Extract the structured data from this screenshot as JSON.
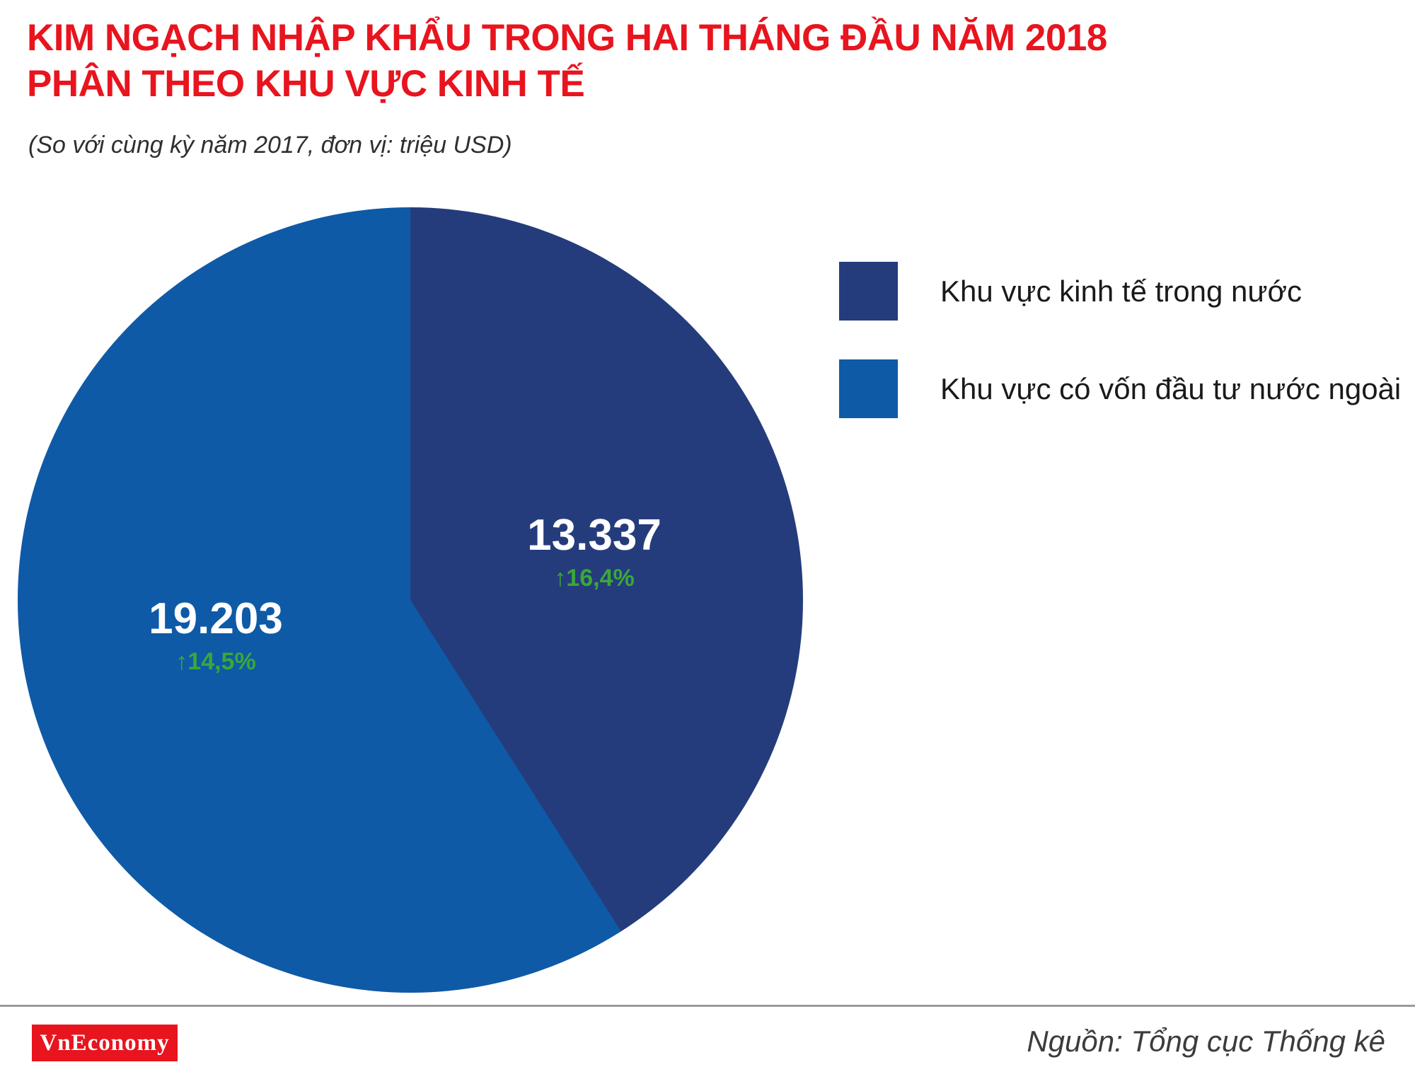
{
  "header": {
    "title_line1": "KIM NGẠCH NHẬP KHẨU TRONG HAI THÁNG ĐẦU NĂM 2018",
    "title_line2": "PHÂN THEO KHU VỰC KINH TẾ",
    "subtitle": "(So với cùng kỳ năm 2017, đơn vị: triệu USD)"
  },
  "chart_data": {
    "type": "pie",
    "title": "Kim ngạch nhập khẩu trong hai tháng đầu năm 2018 phân theo khu vực kinh tế",
    "subtitle": "(So với cùng kỳ năm 2017, đơn vị: triệu USD)",
    "unit": "triệu USD",
    "start_angle_deg": 0,
    "direction": "clockwise",
    "legend_position": "right",
    "series": [
      {
        "label": "Khu vực kinh tế trong nước",
        "value": 13337,
        "value_label": "13.337",
        "change": "↑16,4%",
        "color": "#253c7c"
      },
      {
        "label": "Khu vực có vốn đầu tư nước ngoài",
        "value": 19203,
        "value_label": "19.203",
        "change": "↑14,5%",
        "color": "#0e5aa7"
      }
    ]
  },
  "colors": {
    "title_red": "#e8141e",
    "change_green": "#3aa935",
    "navy": "#253c7c",
    "blue": "#0e5aa7"
  },
  "footer": {
    "logo_text": "VnEconomy",
    "source": "Nguồn: Tổng cục Thống kê"
  }
}
